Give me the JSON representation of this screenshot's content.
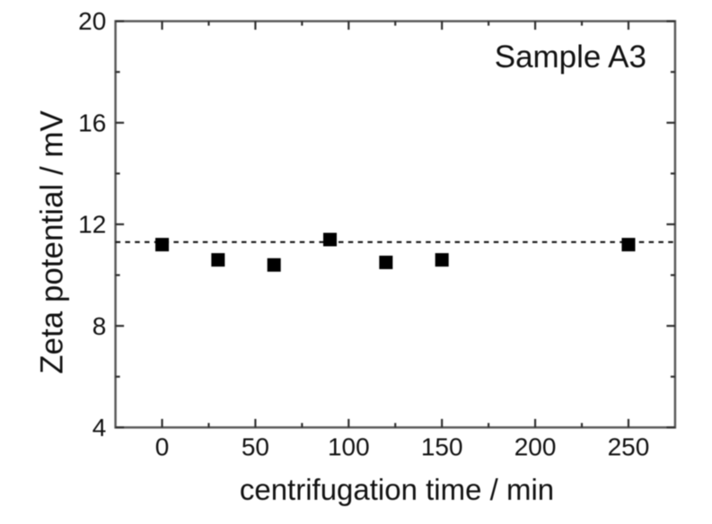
{
  "chart_data": {
    "type": "scatter",
    "title": "",
    "xlabel": "centrifugation time / min",
    "ylabel": "Zeta potential / mV",
    "annotation": "Sample A3",
    "series": [
      {
        "name": "Sample A3 zeta potential",
        "x": [
          0,
          30,
          60,
          90,
          120,
          150,
          250
        ],
        "y": [
          11.2,
          10.6,
          10.4,
          11.4,
          10.5,
          10.6,
          11.2
        ],
        "marker": "filled-square",
        "marker_color": "#000000"
      }
    ],
    "reference_line": {
      "y": 11.3,
      "style": "dashed",
      "color": "#141414"
    },
    "xlim": [
      -25,
      275
    ],
    "ylim": [
      4,
      20
    ],
    "x_major_ticks": [
      0,
      50,
      100,
      150,
      200,
      250
    ],
    "x_minor_ticks": [
      25,
      75,
      125,
      175,
      225
    ],
    "y_major_ticks": [
      4,
      8,
      12,
      16,
      20
    ],
    "y_minor_ticks": [
      6,
      10,
      14,
      18
    ],
    "x_tick_labels": [
      "0",
      "50",
      "100",
      "150",
      "200",
      "250"
    ],
    "y_tick_labels": [
      "4",
      "8",
      "12",
      "16",
      "20"
    ],
    "grid": false,
    "legend": false,
    "frame": "box-with-inward-ticks",
    "frame_color": "#595959",
    "tick_color": "#2f2f2f",
    "text_color": "#111111",
    "background_color": "#ffffff"
  }
}
